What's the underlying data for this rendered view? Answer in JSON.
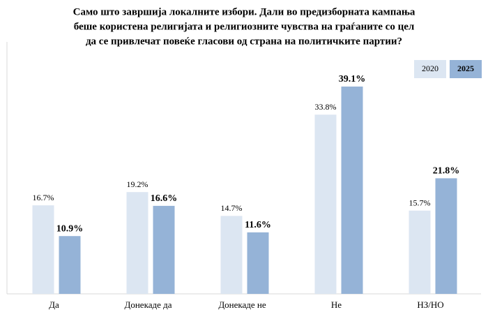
{
  "chart_data": {
    "type": "bar",
    "title": [
      "Само што завршија локалните избори. Дали во предизборната кампања",
      "беше користена религијата и религиозните чувства на граѓаните со цел",
      "да се привлечат повеќе гласови од страна на политичките партии?"
    ],
    "categories": [
      "Да",
      "Донекаде да",
      "Донекаде не",
      "Не",
      "НЗ/НО"
    ],
    "series": [
      {
        "name": "2020",
        "color": "#dce6f2",
        "values": [
          16.7,
          19.2,
          14.7,
          33.8,
          15.7
        ],
        "value_labels": [
          "16.7%",
          "19.2%",
          "14.7%",
          "33.8%",
          "15.7%"
        ]
      },
      {
        "name": "2025",
        "color": "#95b3d7",
        "values": [
          10.9,
          16.6,
          11.6,
          39.1,
          21.8
        ],
        "value_labels": [
          "10.9%",
          "16.6%",
          "11.6%",
          "39.1%",
          "21.8%"
        ]
      }
    ],
    "legend": "top-right"
  }
}
